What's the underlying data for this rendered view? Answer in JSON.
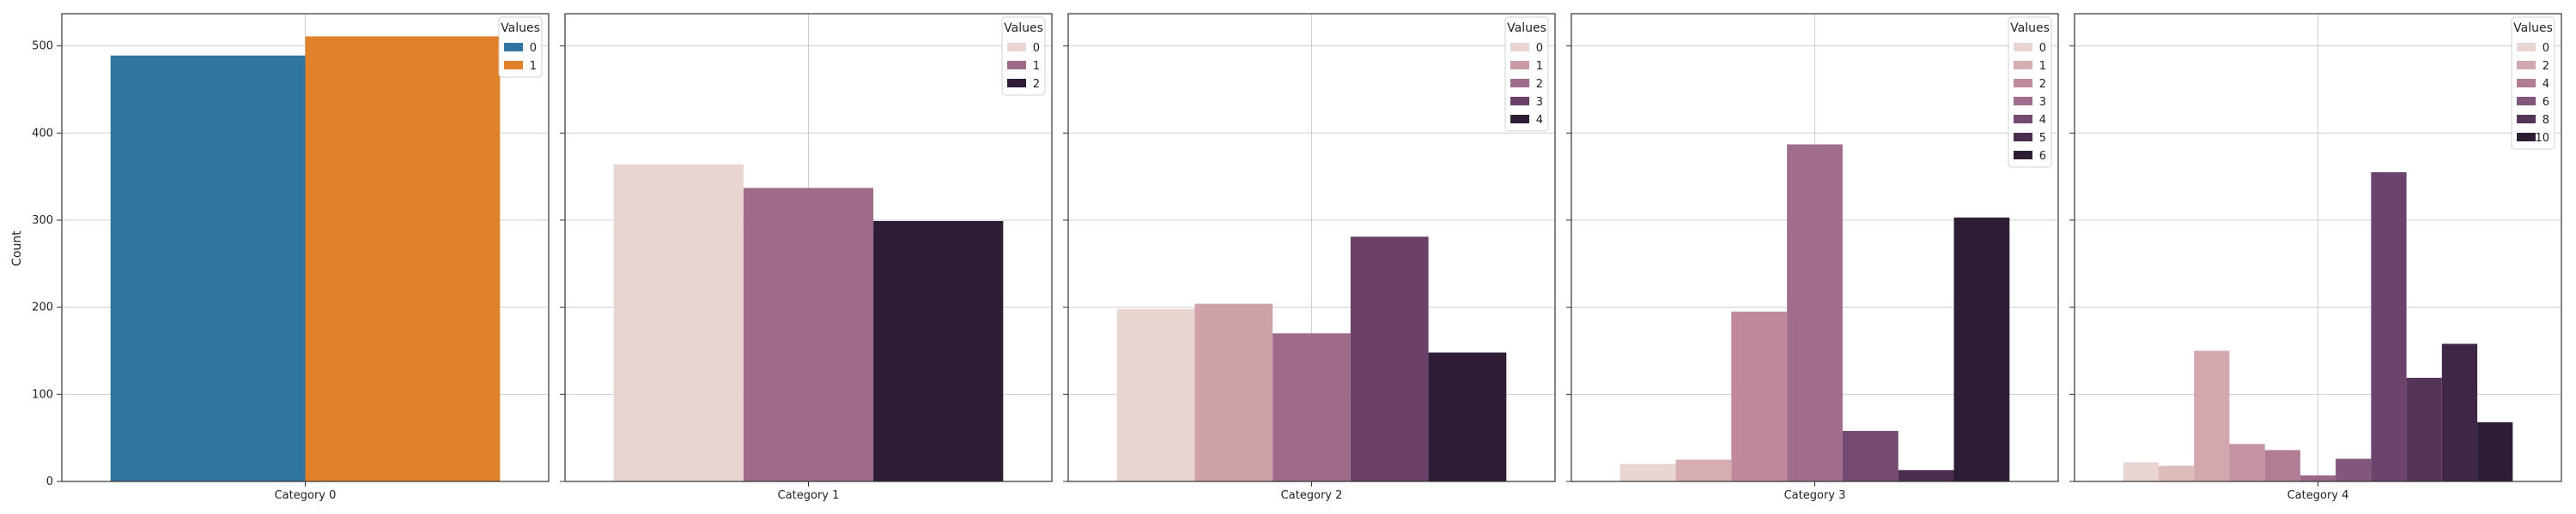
{
  "chart_data": {
    "type": "bar",
    "ylabel": "Count",
    "ylim": [
      0,
      537
    ],
    "yticks": [
      0,
      100,
      200,
      300,
      400,
      500
    ],
    "grid": true,
    "legend_title": "Values",
    "legend_position": "top-right",
    "panels": [
      {
        "xlabel": "Category 0",
        "values": [
          {
            "value": "0",
            "count": 489,
            "color": "#3274a1"
          },
          {
            "value": "1",
            "count": 511,
            "color": "#e1812c"
          }
        ],
        "legend": [
          {
            "label": "0",
            "color": "#3274a1"
          },
          {
            "label": "1",
            "color": "#e1812c"
          }
        ]
      },
      {
        "xlabel": "Category 1",
        "values": [
          {
            "value": "0",
            "count": 364,
            "color": "#e8d4d0"
          },
          {
            "value": "1",
            "count": 337,
            "color": "#9f6b8b"
          },
          {
            "value": "2",
            "count": 299,
            "color": "#2d1e36"
          }
        ],
        "legend": [
          {
            "label": "0",
            "color": "#e8d4d0"
          },
          {
            "label": "1",
            "color": "#9f6b8b"
          },
          {
            "label": "2",
            "color": "#2d1e36"
          }
        ]
      },
      {
        "xlabel": "Category 2",
        "values": [
          {
            "value": "0",
            "count": 198,
            "color": "#e8d4d0"
          },
          {
            "value": "1",
            "count": 204,
            "color": "#cfa1a8"
          },
          {
            "value": "2",
            "count": 170,
            "color": "#9f6b8b"
          },
          {
            "value": "3",
            "count": 281,
            "color": "#6a4068"
          },
          {
            "value": "4",
            "count": 148,
            "color": "#2d1e36"
          }
        ],
        "legend": [
          {
            "label": "0",
            "color": "#e8d4d0"
          },
          {
            "label": "1",
            "color": "#c99aa4"
          },
          {
            "label": "2",
            "color": "#9f6b8b"
          },
          {
            "label": "3",
            "color": "#6a4068"
          },
          {
            "label": "4",
            "color": "#2d1e36"
          }
        ]
      },
      {
        "xlabel": "Category 3",
        "values": [
          {
            "value": "0",
            "count": 20,
            "color": "#e8d4d0"
          },
          {
            "value": "1",
            "count": 25,
            "color": "#d6aeb1"
          },
          {
            "value": "2",
            "count": 195,
            "color": "#c08a9c"
          },
          {
            "value": "3",
            "count": 387,
            "color": "#a06e8c"
          },
          {
            "value": "4",
            "count": 58,
            "color": "#744a70"
          },
          {
            "value": "5",
            "count": 13,
            "color": "#4c2c50"
          },
          {
            "value": "6",
            "count": 303,
            "color": "#2d1e36"
          }
        ],
        "legend": [
          {
            "label": "0",
            "color": "#e8d4d0"
          },
          {
            "label": "1",
            "color": "#d6aeb1"
          },
          {
            "label": "2",
            "color": "#c08a9c"
          },
          {
            "label": "3",
            "color": "#a06e8c"
          },
          {
            "label": "4",
            "color": "#744a70"
          },
          {
            "label": "5",
            "color": "#4c2c50"
          },
          {
            "label": "6",
            "color": "#2d1e36"
          }
        ]
      },
      {
        "xlabel": "Category 4",
        "values": [
          {
            "value": "0",
            "count": 22,
            "color": "#e8d4d0"
          },
          {
            "value": "1",
            "count": 18,
            "color": "#ddbcbc"
          },
          {
            "value": "2",
            "count": 150,
            "color": "#d2a7ad"
          },
          {
            "value": "3",
            "count": 43,
            "color": "#c393a1"
          },
          {
            "value": "4",
            "count": 36,
            "color": "#b07d95"
          },
          {
            "value": "5",
            "count": 7,
            "color": "#9a6888"
          },
          {
            "value": "6",
            "count": 26,
            "color": "#83567b"
          },
          {
            "value": "7",
            "count": 355,
            "color": "#6b436c"
          },
          {
            "value": "8",
            "count": 119,
            "color": "#563459"
          },
          {
            "value": "9",
            "count": 158,
            "color": "#3f2647"
          },
          {
            "value": "10",
            "count": 68,
            "color": "#2d1e36"
          }
        ],
        "legend": [
          {
            "label": "0",
            "color": "#e8d4d0"
          },
          {
            "label": "2",
            "color": "#d2a7ad"
          },
          {
            "label": "4",
            "color": "#b07d95"
          },
          {
            "label": "6",
            "color": "#83567b"
          },
          {
            "label": "8",
            "color": "#563459"
          },
          {
            "label": "10",
            "color": "#2d1e36"
          }
        ]
      }
    ]
  }
}
